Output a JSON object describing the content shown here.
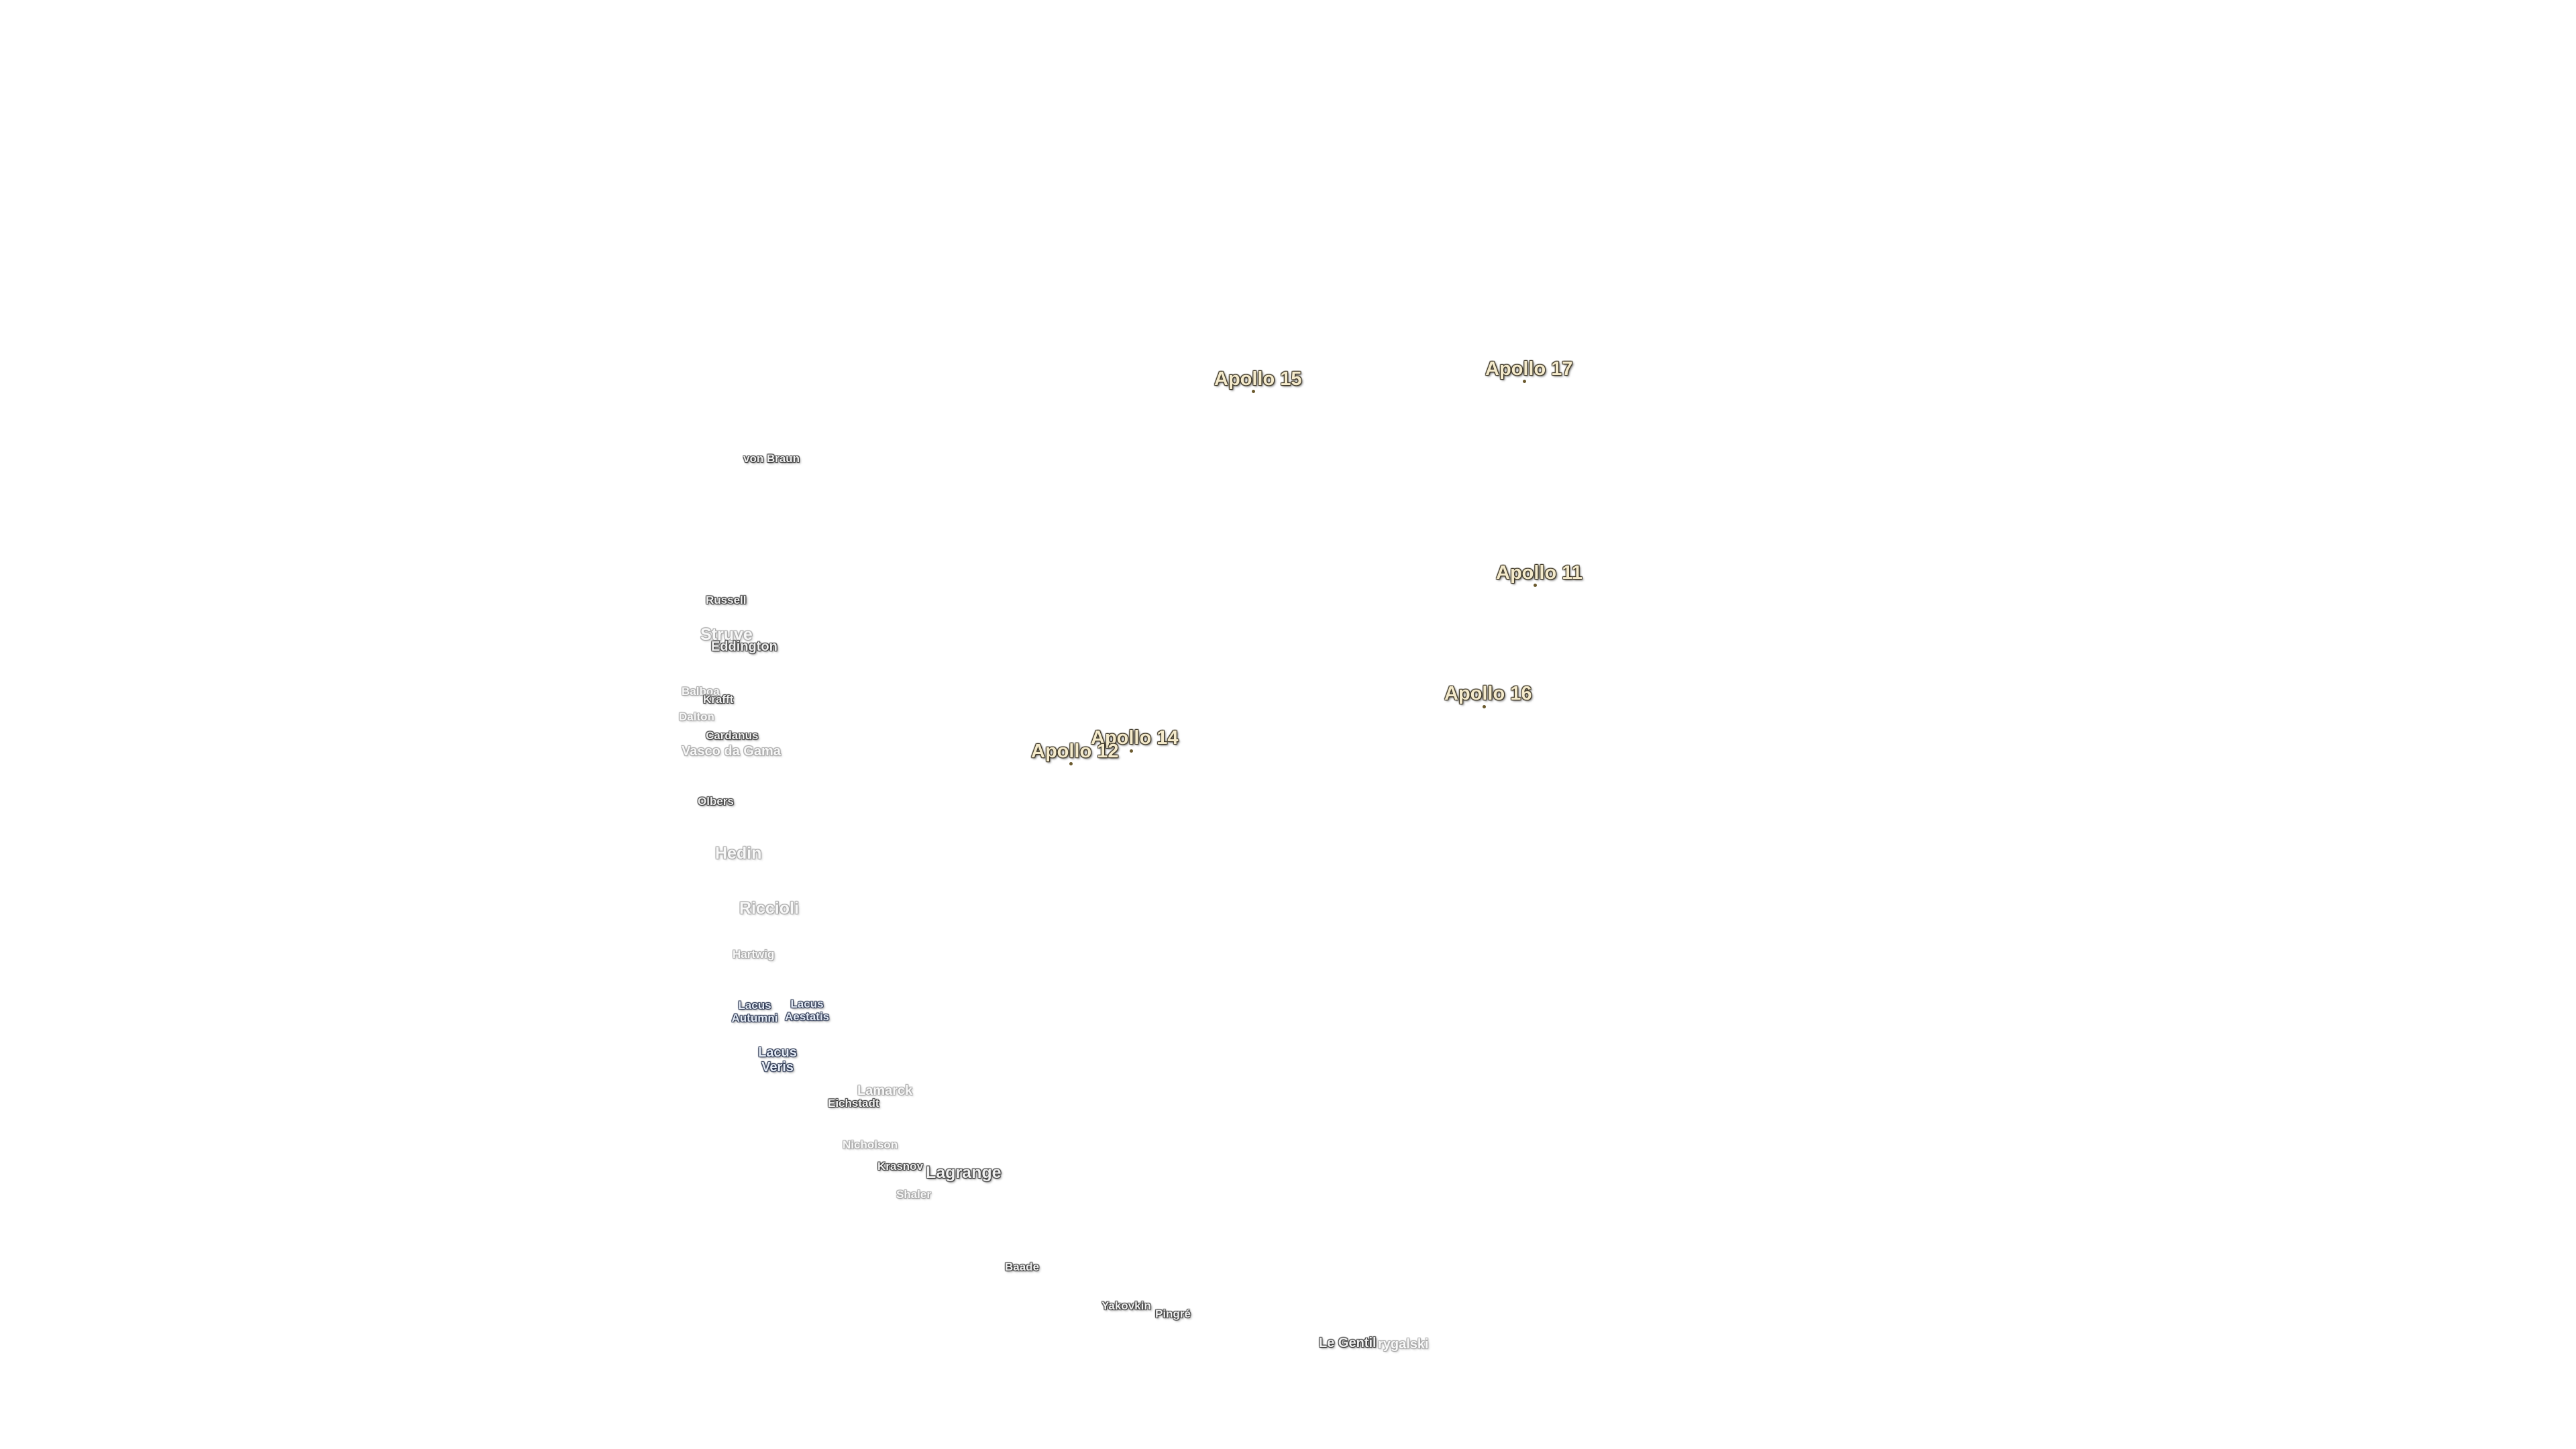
{
  "apollo_sites": [
    {
      "label": "Apollo 15"
    },
    {
      "label": "Apollo 17"
    },
    {
      "label": "Apollo 11"
    },
    {
      "label": "Apollo 16"
    },
    {
      "label": "Apollo 14"
    },
    {
      "label": "Apollo 12"
    }
  ],
  "features": [
    {
      "label": "von Braun"
    },
    {
      "label": "Russell"
    },
    {
      "label": "Struve"
    },
    {
      "label": "Eddington"
    },
    {
      "label": "Balboa"
    },
    {
      "label": "Krafft"
    },
    {
      "label": "Dalton"
    },
    {
      "label": "Cardanus"
    },
    {
      "label": "Vasco da Gama"
    },
    {
      "label": "Olbers"
    },
    {
      "label": "Hedin"
    },
    {
      "label": "Riccioli"
    },
    {
      "label": "Hartwig"
    },
    {
      "label": "Lacus Autumni"
    },
    {
      "label": "Lacus Aestatis"
    },
    {
      "label": "Lacus Veris"
    },
    {
      "label": "Lamarck"
    },
    {
      "label": "Eichstadt"
    },
    {
      "label": "Nicholson"
    },
    {
      "label": "Krasnov"
    },
    {
      "label": "Lagrange"
    },
    {
      "label": "Shaler"
    },
    {
      "label": "Baade"
    },
    {
      "label": "Yakovkin"
    },
    {
      "label": "Pingré"
    },
    {
      "label": "Le Gentil"
    },
    {
      "label": "rygalski"
    }
  ],
  "colors": {
    "apollo_text": "#f4eacb",
    "apollo_outline": "#3a3322",
    "crater_text": "#f0f0f0",
    "lacus_text": "#e4ebf6"
  }
}
